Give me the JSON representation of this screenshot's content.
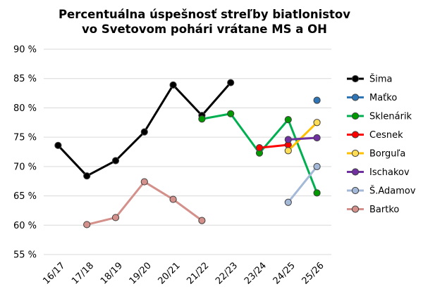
{
  "chart_data": {
    "type": "line",
    "title": [
      "Percentuálna úspešnosť streľby biatlonistov",
      "vo Svetovom pohári vrátane MS a OH"
    ],
    "xlabel": "",
    "ylabel": "",
    "categories": [
      "16/17",
      "17/18",
      "18/19",
      "19/20",
      "20/21",
      "21/22",
      "22/23",
      "23/24",
      "24/25",
      "25/26"
    ],
    "ylim": [
      55,
      90
    ],
    "yticks": [
      55,
      60,
      65,
      70,
      75,
      80,
      85,
      90
    ],
    "ytick_labels": [
      "55 %",
      "60 %",
      "65 %",
      "70 %",
      "75 %",
      "80 %",
      "85 %",
      "90 %"
    ],
    "grid": "horizontal",
    "legend_position": "right",
    "series": [
      {
        "name": "Šima",
        "color": "#000000",
        "marker": "#000000",
        "values": [
          73.6,
          68.4,
          71.0,
          75.9,
          83.9,
          78.7,
          84.3,
          null,
          null,
          null
        ]
      },
      {
        "name": "Maťko",
        "color": "#2e75b6",
        "marker": "#2e75b6",
        "values": [
          null,
          null,
          null,
          null,
          null,
          null,
          null,
          null,
          null,
          81.3
        ]
      },
      {
        "name": "Sklenárik",
        "color": "#00b050",
        "marker": "#009a00",
        "values": [
          null,
          null,
          null,
          null,
          null,
          78.1,
          79.0,
          72.3,
          78.0,
          65.5
        ]
      },
      {
        "name": "Cesnek",
        "color": "#ff0000",
        "marker": "#ff0000",
        "values": [
          null,
          null,
          null,
          null,
          null,
          null,
          null,
          73.2,
          73.7,
          null
        ]
      },
      {
        "name": "Borguľa",
        "color": "#ffc000",
        "marker": "#ffdd55",
        "values": [
          null,
          null,
          null,
          null,
          null,
          null,
          null,
          null,
          72.7,
          77.5
        ]
      },
      {
        "name": "Ischakov",
        "color": "#7030a0",
        "marker": "#7030a0",
        "values": [
          null,
          null,
          null,
          null,
          null,
          null,
          null,
          null,
          74.6,
          74.9
        ]
      },
      {
        "name": "Š.Adamov",
        "color": "#a4b8d8",
        "marker": "#a4b8d8",
        "values": [
          null,
          null,
          null,
          null,
          null,
          null,
          null,
          null,
          63.9,
          70.0
        ]
      },
      {
        "name": "Bartko",
        "color": "#d4908a",
        "marker": "#d4908a",
        "values": [
          null,
          60.1,
          61.3,
          67.4,
          64.4,
          60.8,
          null,
          null,
          null,
          null
        ]
      }
    ]
  }
}
